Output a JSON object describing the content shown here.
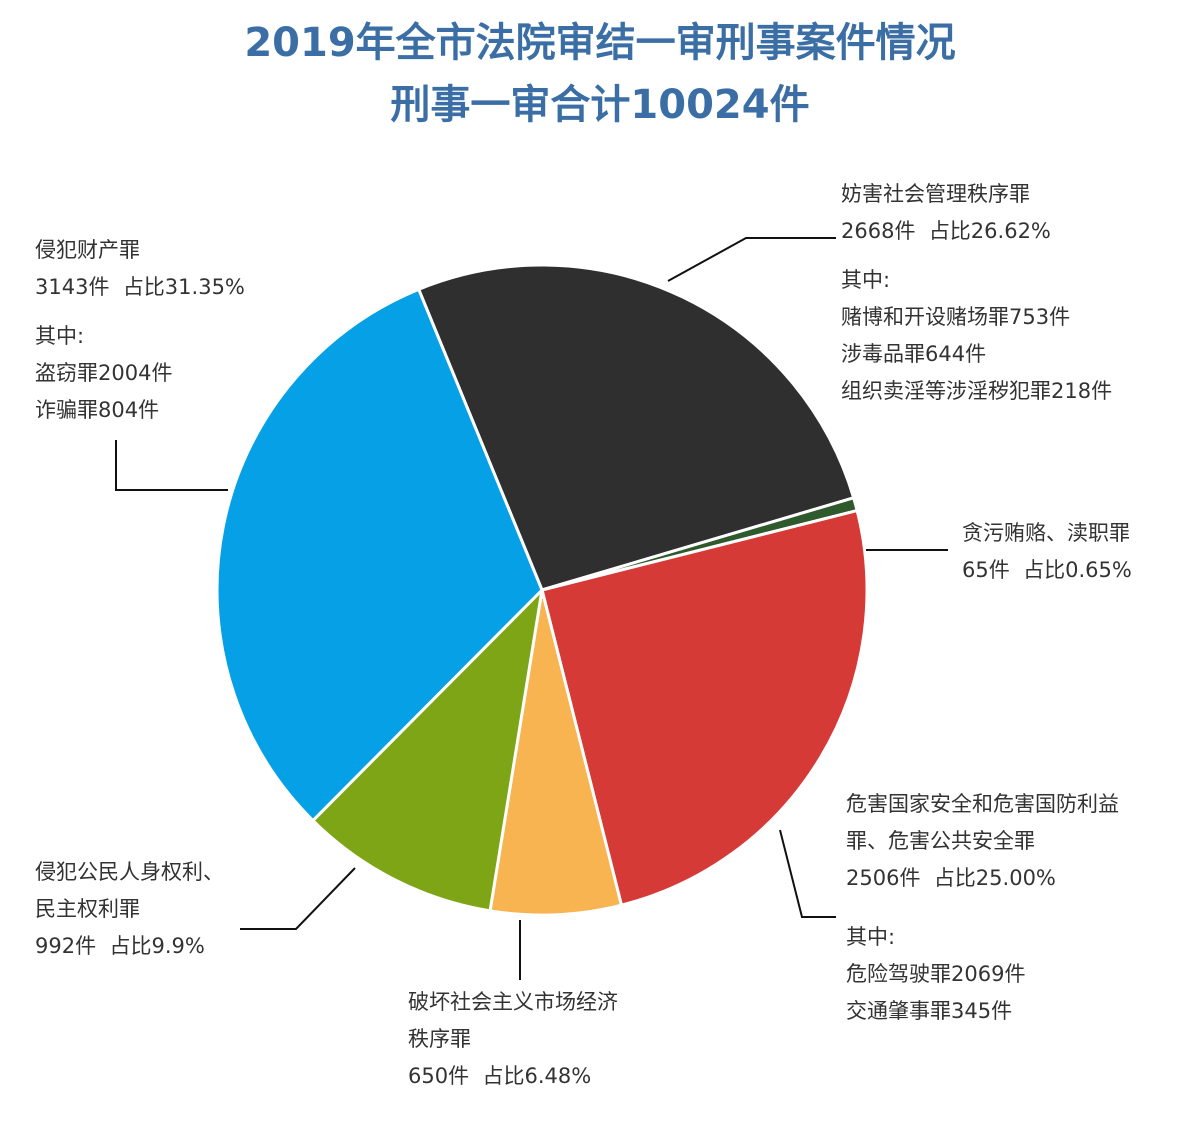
{
  "title": "2019年全市法院审结一审刑事案件情况",
  "subtitle": "刑事一审合计10024件",
  "colors": {
    "title": "#3a6ea5",
    "text": "#333333",
    "leader": "#111111"
  },
  "chart_data": {
    "type": "pie",
    "title": "2019年全市法院审结一审刑事案件情况",
    "subtitle": "刑事一审合计10024件",
    "total": 10024,
    "slices": [
      {
        "name": "妨害社会管理秩序罪",
        "count_text": "2668件",
        "percent_text": "占比26.62%",
        "value": 2668,
        "percent": 26.62,
        "color": "#2f2f2f",
        "sub_title": "其中:",
        "sub_items": [
          "赌博和开设赌场罪753件",
          "涉毒品罪644件",
          "组织卖淫等涉淫秽犯罪218件"
        ]
      },
      {
        "name": "贪污贿赂、渎职罪",
        "count_text": "65件",
        "percent_text": "占比0.65%",
        "value": 65,
        "percent": 0.65,
        "color": "#2e5a2e",
        "sub_title": "",
        "sub_items": []
      },
      {
        "name": "危害国家安全和危害国防利益罪、危害公共安全罪",
        "name_lines": [
          "危害国家安全和危害国防利益",
          "罪、危害公共安全罪"
        ],
        "count_text": "2506件",
        "percent_text": "占比25.00%",
        "value": 2506,
        "percent": 25.0,
        "color": "#d63a37",
        "sub_title": "其中:",
        "sub_items": [
          "危险驾驶罪2069件",
          "交通肇事罪345件"
        ]
      },
      {
        "name": "破坏社会主义市场经济秩序罪",
        "name_lines": [
          "破坏社会主义市场经济",
          "秩序罪"
        ],
        "count_text": "650件",
        "percent_text": "占比6.48%",
        "value": 650,
        "percent": 6.48,
        "color": "#f7b451",
        "sub_title": "",
        "sub_items": []
      },
      {
        "name": "侵犯公民人身权利、民主权利罪",
        "name_lines": [
          "侵犯公民人身权利、",
          "民主权利罪"
        ],
        "count_text": "992件",
        "percent_text": "占比9.9%",
        "value": 992,
        "percent": 9.9,
        "color": "#7ea516",
        "sub_title": "",
        "sub_items": []
      },
      {
        "name": "侵犯财产罪",
        "count_text": "3143件",
        "percent_text": "占比31.35%",
        "value": 3143,
        "percent": 31.35,
        "color": "#05a0e6",
        "sub_title": "其中:",
        "sub_items": [
          "盗窃罪2004件",
          "诈骗罪804件"
        ]
      }
    ],
    "legend": "none"
  }
}
